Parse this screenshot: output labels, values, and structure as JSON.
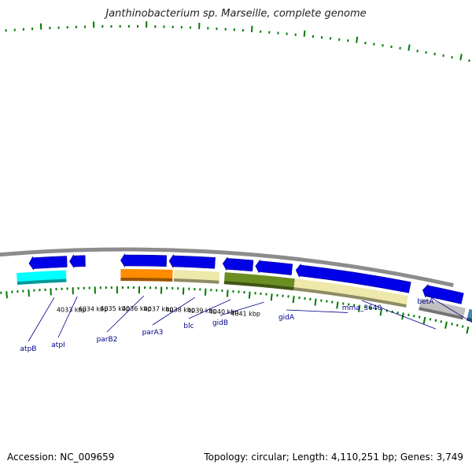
{
  "title": "Janthinobacterium sp. Marseille, complete genome",
  "footer": {
    "accession": "Accession: NC_009659",
    "summary": "Topology: circular; Length: 4,110,251 bp; Genes: 3,749"
  },
  "colors": {
    "background": "#ffffff",
    "backbone": "#8c8c8c",
    "forward_strand": "#0000e6",
    "tick": "#007a00",
    "gene_label": "#00008b",
    "scale_label": "#000000"
  },
  "scale": {
    "unit": "kbp",
    "labels": [
      {
        "kbp": 4033,
        "text": "4033 kbp"
      },
      {
        "kbp": 4034,
        "text": "4034 kbp"
      },
      {
        "kbp": 4035,
        "text": "4035 kbp"
      },
      {
        "kbp": 4036,
        "text": "4036 kbp"
      },
      {
        "kbp": 4037,
        "text": "4037 kbp"
      },
      {
        "kbp": 4038,
        "text": "4038 kbp"
      },
      {
        "kbp": 4039,
        "text": "4039 kbp"
      },
      {
        "kbp": 4040,
        "text": "4040 kbp"
      },
      {
        "kbp": 4041,
        "text": "4041 kbp"
      }
    ]
  },
  "genes": [
    {
      "name": "atpB",
      "color": "#00ffff"
    },
    {
      "name": "atpI"
    },
    {
      "name": "parB2",
      "color": "#ff8c00"
    },
    {
      "name": "parA3",
      "color": "#eee8aa"
    },
    {
      "name": "blc"
    },
    {
      "name": "gidB",
      "color": "#6b8e23"
    },
    {
      "name": "gidA",
      "color": "#eee8aa"
    },
    {
      "name": "mma_3640",
      "color": "#c0c0c0"
    },
    {
      "name": "betA",
      "color": "#4682b4"
    }
  ]
}
